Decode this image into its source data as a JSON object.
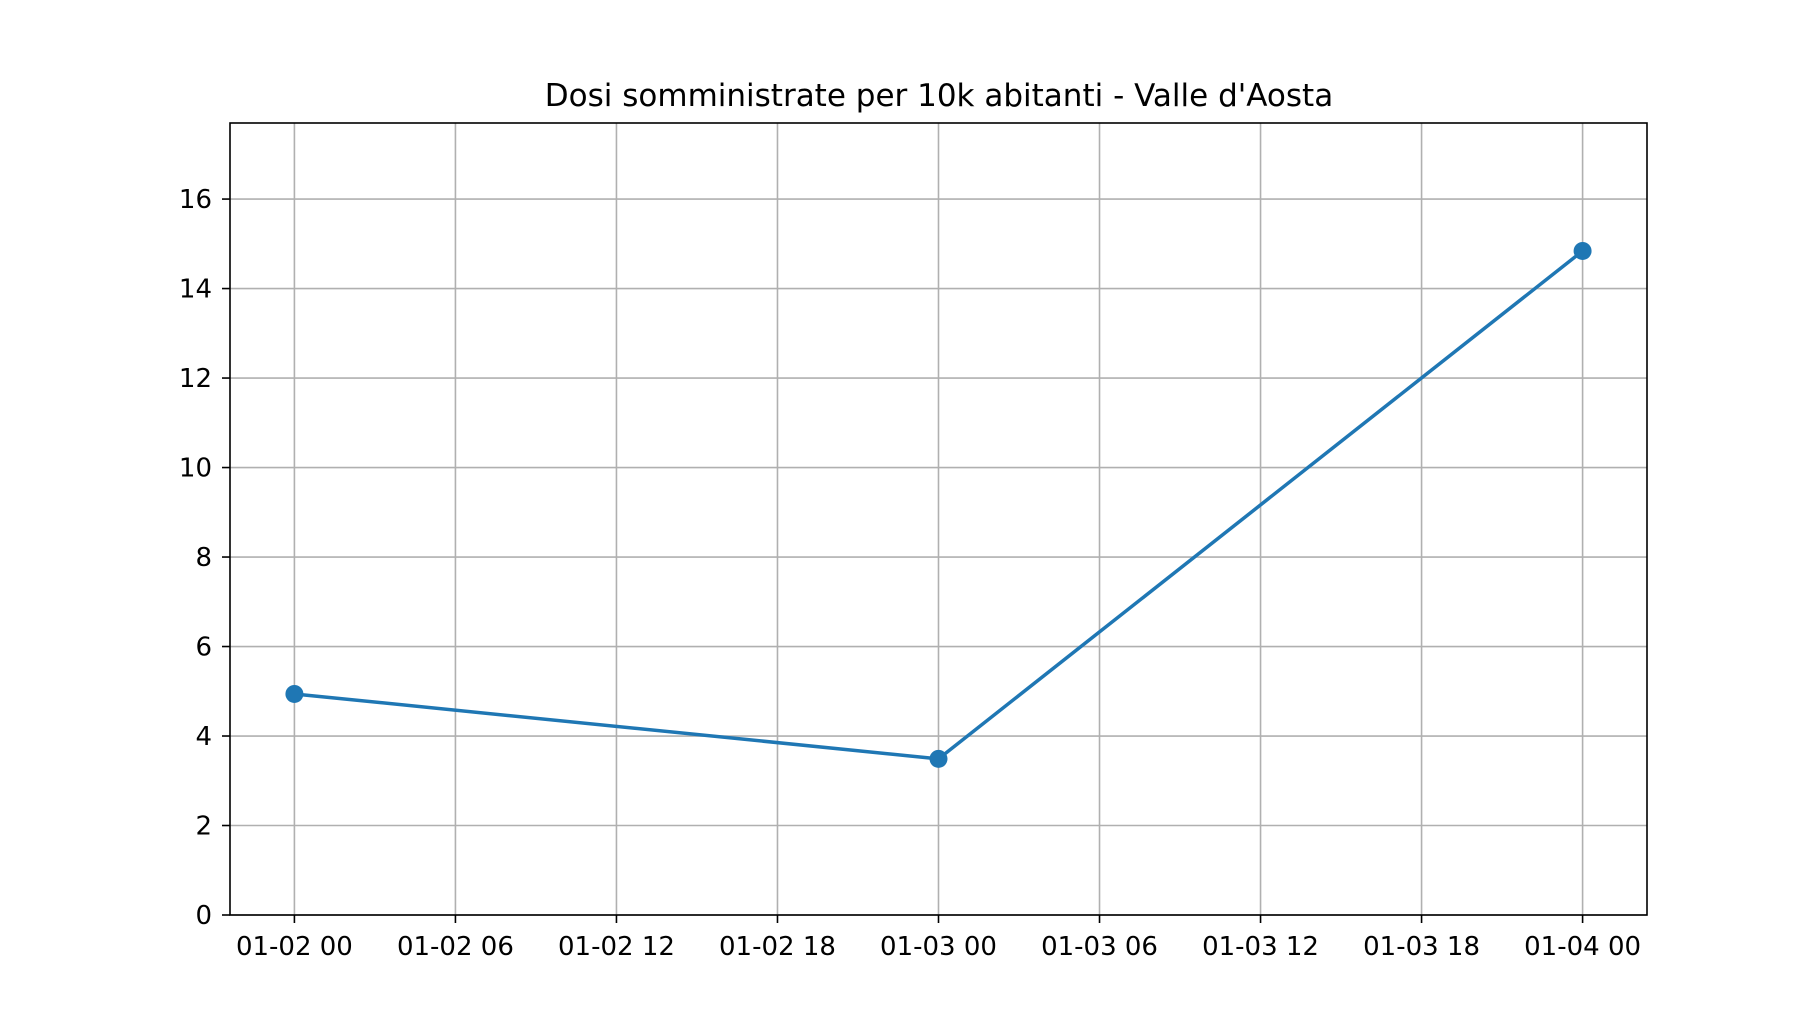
{
  "chart_data": {
    "type": "line",
    "title": "Dosi somministrate per 10k abitanti - Valle d'Aosta",
    "xlabel": "",
    "ylabel": "",
    "x": [
      "01-02 00",
      "01-03 00",
      "01-04 00"
    ],
    "series": [
      {
        "values": [
          4.94,
          3.49,
          14.84
        ],
        "color": "#1f77b4"
      }
    ],
    "xlim": [
      "01-01 21:36",
      "01-04 02:24"
    ],
    "ylim": [
      0,
      17.7
    ],
    "xticks": [
      "01-02 00",
      "01-02 06",
      "01-02 12",
      "01-02 18",
      "01-03 00",
      "01-03 06",
      "01-03 12",
      "01-03 18",
      "01-04 00"
    ],
    "yticks": [
      0,
      2,
      4,
      6,
      8,
      10,
      12,
      14,
      16
    ],
    "grid": true,
    "grid_color": "#b0b0b0",
    "line_color": "#1f77b4",
    "marker": "circle"
  }
}
